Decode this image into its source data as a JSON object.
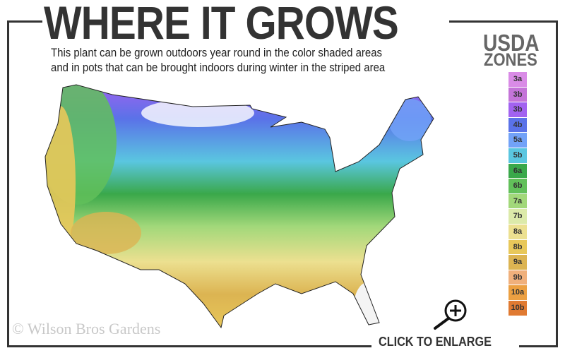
{
  "header": {
    "title": "WHERE IT GROWS",
    "subtitle_line1": "This plant can be grown outdoors year round in the color shaded areas",
    "subtitle_line2": "and in pots that can be brought indoors during winter in the striped area"
  },
  "legend": {
    "title_line1": "USDA",
    "title_line2": "ZONES",
    "zones": [
      {
        "label": "3a",
        "color": "#d98be6"
      },
      {
        "label": "3b",
        "color": "#c474d8"
      },
      {
        "label": "3b",
        "color": "#a262f0"
      },
      {
        "label": "4b",
        "color": "#5a72e8"
      },
      {
        "label": "5a",
        "color": "#72a2f8"
      },
      {
        "label": "5b",
        "color": "#5ac6e0"
      },
      {
        "label": "6a",
        "color": "#3aa84a"
      },
      {
        "label": "6b",
        "color": "#62c05a"
      },
      {
        "label": "7a",
        "color": "#a2d87a"
      },
      {
        "label": "7b",
        "color": "#dceaaa"
      },
      {
        "label": "8a",
        "color": "#ece090"
      },
      {
        "label": "8b",
        "color": "#e8c85a"
      },
      {
        "label": "9a",
        "color": "#dcb452"
      },
      {
        "label": "9b",
        "color": "#f0b07c"
      },
      {
        "label": "10a",
        "color": "#eca042"
      },
      {
        "label": "10b",
        "color": "#e07a32"
      }
    ]
  },
  "watermark": "© Wilson Bros Gardens",
  "enlarge": {
    "label": "CLICK TO ENLARGE",
    "icon": "zoom-in-icon"
  }
}
